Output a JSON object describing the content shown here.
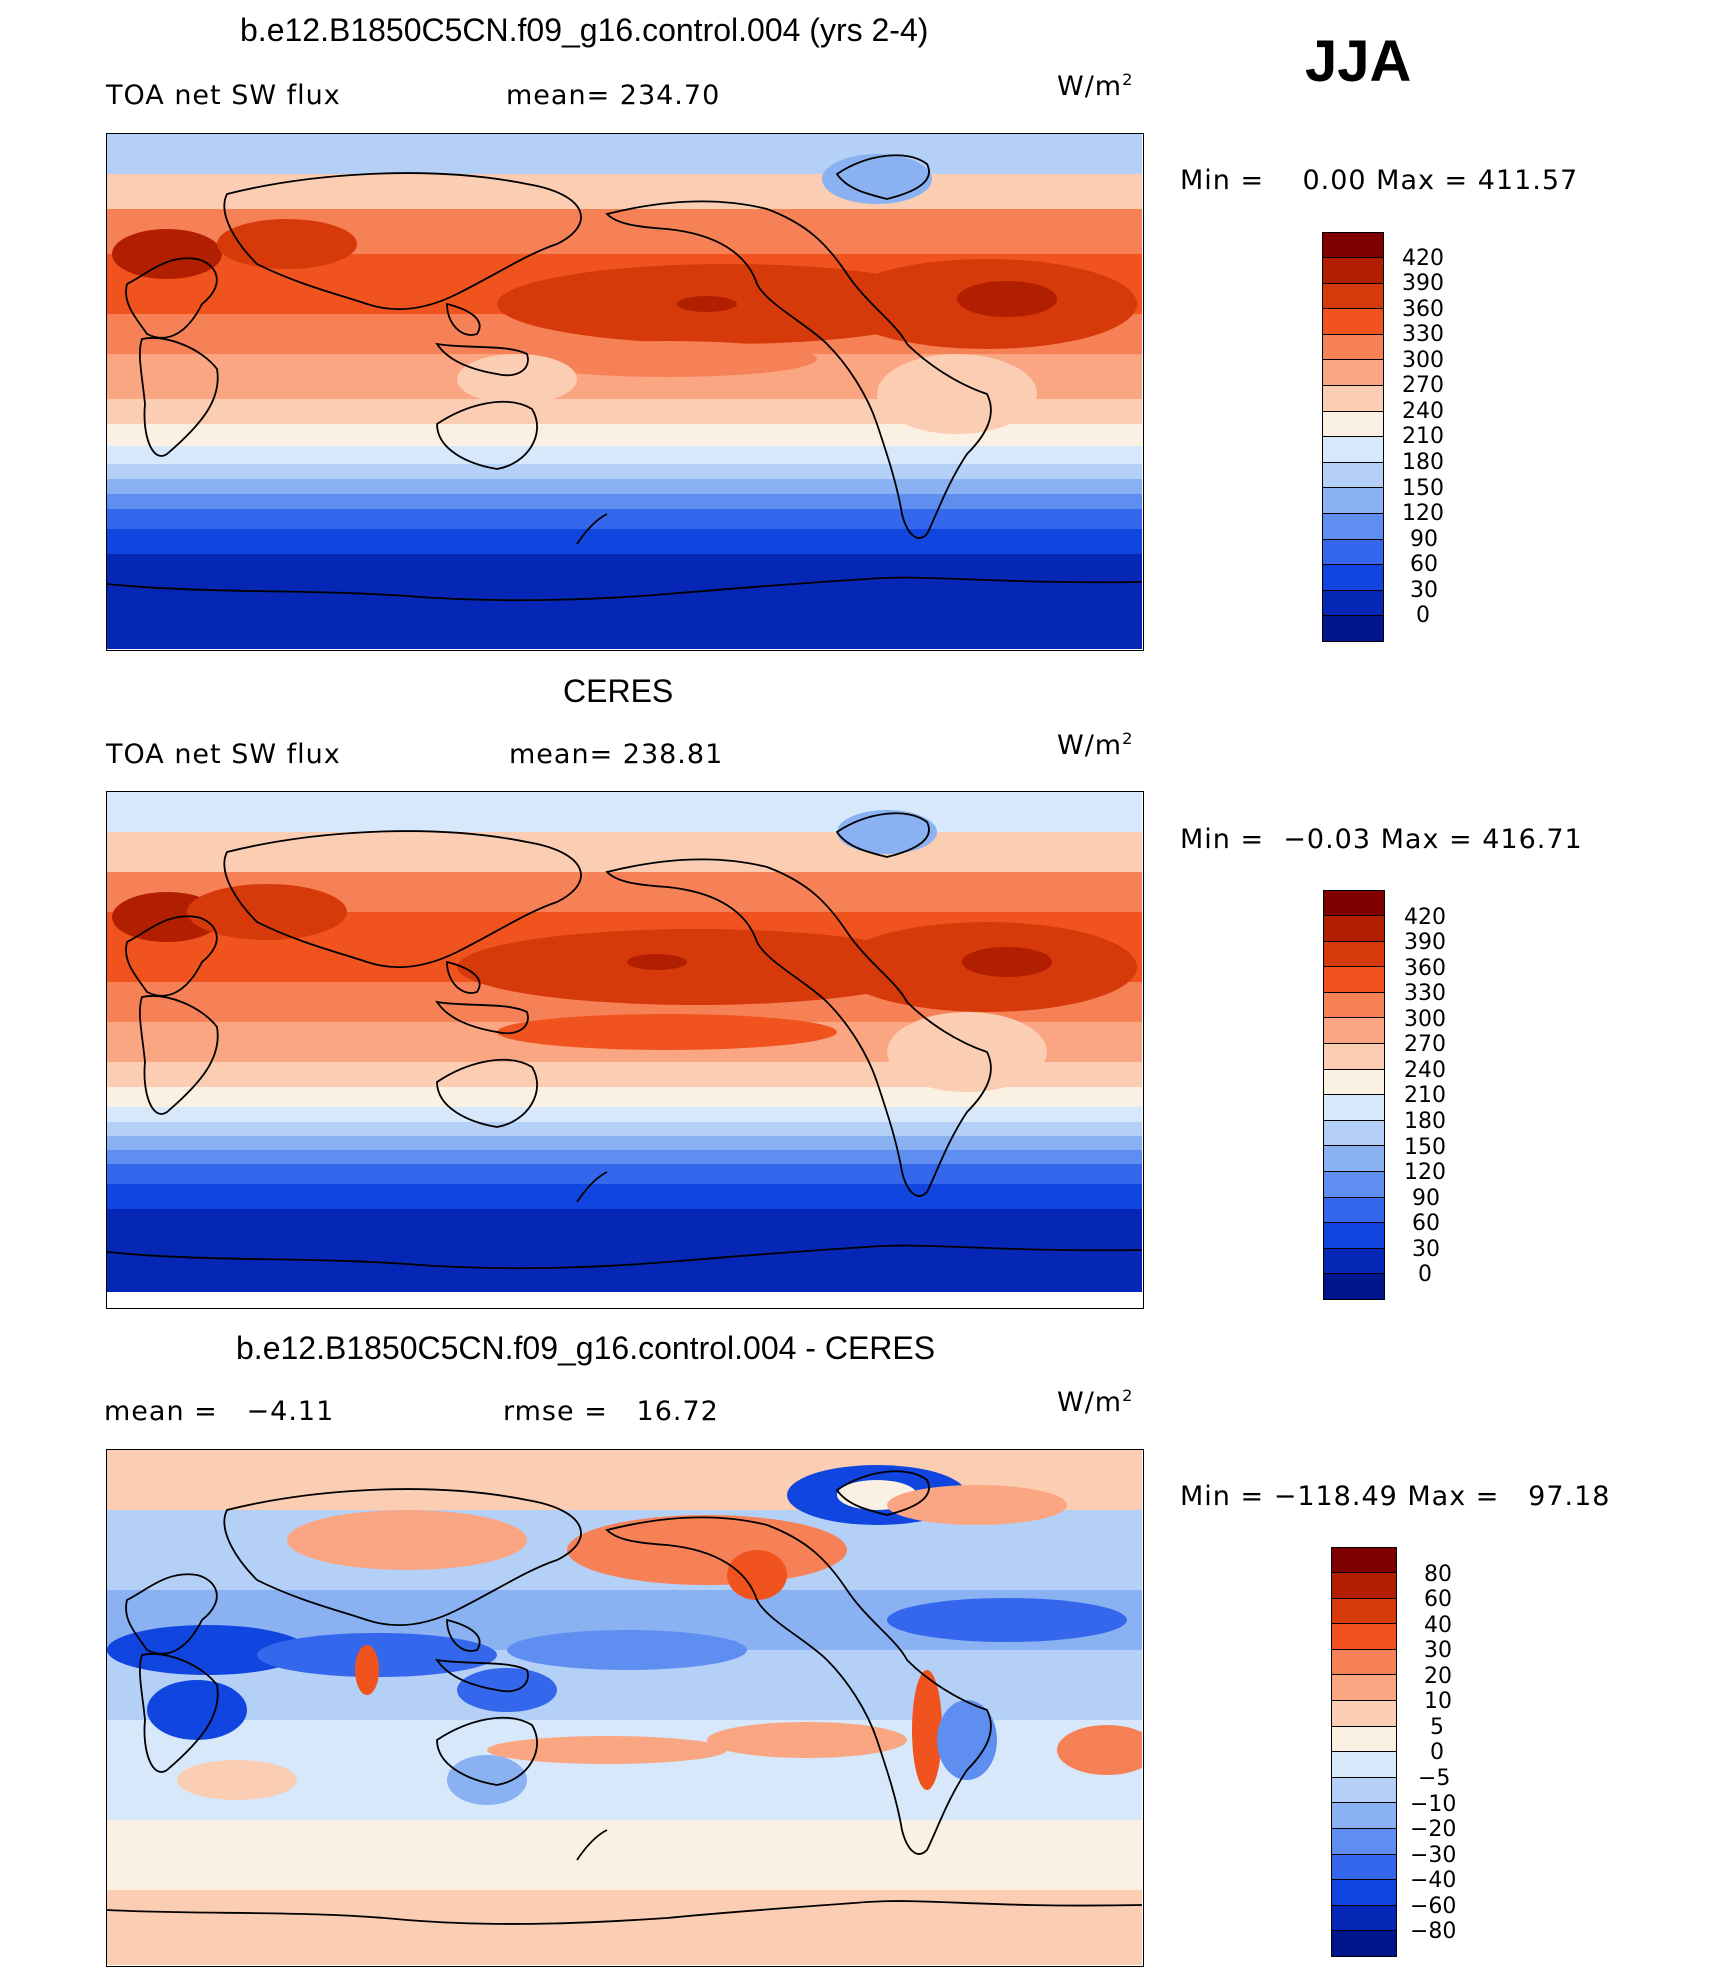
{
  "season": "JJA",
  "units_base": "W/m",
  "units_exp": "2",
  "panels": [
    {
      "title": "b.e12.B1850C5CN.f09_g16.control.004 (yrs 2-4)",
      "left_label": "TOA net SW flux",
      "mid_label": "mean= 234.70",
      "minmax": "Min =    0.00 Max = 411.57",
      "levels": [
        "420",
        "390",
        "360",
        "330",
        "300",
        "270",
        "240",
        "210",
        "180",
        "150",
        "120",
        "90",
        "60",
        "30",
        "0"
      ],
      "colors": [
        "#800000",
        "#b21e00",
        "#d63a0a",
        "#f0531e",
        "#f78156",
        "#faa683",
        "#fbcdb2",
        "#fbf1e3",
        "#d7e8fb",
        "#b5d0f7",
        "#8ab2f3",
        "#5e8ff0",
        "#3467ec",
        "#1045df",
        "#0626b6",
        "#00168c"
      ]
    },
    {
      "title": "CERES",
      "left_label": "TOA net SW flux",
      "mid_label": "mean= 238.81",
      "minmax": "Min =  −0.03 Max = 416.71",
      "levels": [
        "420",
        "390",
        "360",
        "330",
        "300",
        "270",
        "240",
        "210",
        "180",
        "150",
        "120",
        "90",
        "60",
        "30",
        "0"
      ],
      "colors": [
        "#800000",
        "#b21e00",
        "#d63a0a",
        "#f0531e",
        "#f78156",
        "#faa683",
        "#fbcdb2",
        "#fbf1e3",
        "#d7e8fb",
        "#b5d0f7",
        "#8ab2f3",
        "#5e8ff0",
        "#3467ec",
        "#1045df",
        "#0626b6",
        "#00168c"
      ]
    },
    {
      "title": "b.e12.B1850C5CN.f09_g16.control.004 - CERES",
      "left_label": "mean =   −4.11",
      "mid_label": "rmse =   16.72",
      "minmax": "Min = −118.49 Max =   97.18",
      "levels": [
        "80",
        "60",
        "40",
        "30",
        "20",
        "10",
        "5",
        "0",
        "−5",
        "−10",
        "−20",
        "−30",
        "−40",
        "−60",
        "−80"
      ],
      "colors": [
        "#800000",
        "#b21e00",
        "#d63a0a",
        "#f0531e",
        "#f78156",
        "#faa683",
        "#fbcdb2",
        "#fbf1e3",
        "#d7e8fb",
        "#b5d0f7",
        "#8ab2f3",
        "#5e8ff0",
        "#3467ec",
        "#1045df",
        "#0626b6",
        "#00168c"
      ]
    }
  ]
}
